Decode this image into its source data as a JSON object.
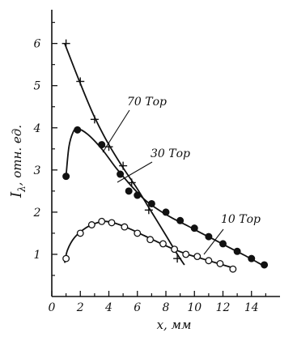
{
  "chart_data": {
    "type": "line",
    "title": "",
    "xlabel": "x, мм",
    "ylabel_main": "I",
    "ylabel_sub": "λ",
    "ylabel_rest": ", отн. ед.",
    "xlim": [
      0,
      16
    ],
    "ylim": [
      0,
      6.8
    ],
    "x_ticks": [
      0,
      2,
      4,
      6,
      8,
      10,
      12,
      14
    ],
    "y_ticks": [
      1,
      2,
      3,
      4,
      5,
      6
    ],
    "x_tick_labels": [
      "0",
      "2",
      "4",
      "6",
      "8",
      "10",
      "12",
      "14"
    ],
    "y_tick_labels": [
      "1",
      "2",
      "3",
      "4",
      "5",
      "6"
    ],
    "grid": false,
    "legend": "none",
    "series": [
      {
        "name": "70 Тор",
        "marker": "plus",
        "points": [
          [
            1.0,
            6.0
          ],
          [
            2.0,
            5.1
          ],
          [
            3.0,
            4.2
          ],
          [
            4.0,
            3.55
          ],
          [
            5.0,
            3.1
          ],
          [
            5.6,
            2.7
          ],
          [
            6.8,
            2.05
          ],
          [
            8.8,
            0.9
          ]
        ],
        "curve": [
          [
            0.9,
            6.0
          ],
          [
            2.0,
            5.05
          ],
          [
            3.0,
            4.25
          ],
          [
            4.0,
            3.6
          ],
          [
            5.0,
            3.05
          ],
          [
            6.0,
            2.55
          ],
          [
            7.0,
            2.0
          ],
          [
            8.0,
            1.45
          ],
          [
            8.8,
            1.0
          ],
          [
            9.3,
            0.75
          ]
        ]
      },
      {
        "name": "30 Тор",
        "marker": "filled",
        "points": [
          [
            1.0,
            2.85
          ],
          [
            1.8,
            3.95
          ],
          [
            3.5,
            3.6
          ],
          [
            4.8,
            2.9
          ],
          [
            5.4,
            2.5
          ],
          [
            6.0,
            2.4
          ],
          [
            7.0,
            2.2
          ],
          [
            8.0,
            2.0
          ],
          [
            9.0,
            1.8
          ],
          [
            10.0,
            1.62
          ],
          [
            11.0,
            1.42
          ],
          [
            12.0,
            1.25
          ],
          [
            13.0,
            1.07
          ],
          [
            14.0,
            0.9
          ],
          [
            14.9,
            0.75
          ]
        ],
        "curve": [
          [
            1.0,
            2.85
          ],
          [
            1.2,
            3.55
          ],
          [
            1.5,
            3.9
          ],
          [
            1.8,
            3.98
          ],
          [
            2.5,
            3.85
          ],
          [
            3.5,
            3.5
          ],
          [
            4.5,
            3.05
          ],
          [
            5.5,
            2.65
          ],
          [
            6.5,
            2.3
          ],
          [
            7.5,
            2.05
          ],
          [
            8.5,
            1.85
          ],
          [
            9.5,
            1.68
          ],
          [
            10.5,
            1.5
          ],
          [
            11.5,
            1.33
          ],
          [
            12.5,
            1.15
          ],
          [
            13.5,
            0.98
          ],
          [
            14.9,
            0.72
          ]
        ]
      },
      {
        "name": "10 Тор",
        "marker": "open",
        "points": [
          [
            1.0,
            0.9
          ],
          [
            2.0,
            1.5
          ],
          [
            2.8,
            1.7
          ],
          [
            3.5,
            1.78
          ],
          [
            4.2,
            1.75
          ],
          [
            5.1,
            1.65
          ],
          [
            6.0,
            1.5
          ],
          [
            6.9,
            1.35
          ],
          [
            7.8,
            1.25
          ],
          [
            8.6,
            1.12
          ],
          [
            9.4,
            1.0
          ],
          [
            10.2,
            0.95
          ],
          [
            11.0,
            0.85
          ],
          [
            11.8,
            0.78
          ],
          [
            12.7,
            0.65
          ]
        ],
        "curve": [
          [
            0.9,
            0.8
          ],
          [
            1.1,
            1.1
          ],
          [
            1.6,
            1.4
          ],
          [
            2.4,
            1.63
          ],
          [
            3.2,
            1.75
          ],
          [
            3.8,
            1.78
          ],
          [
            4.5,
            1.73
          ],
          [
            5.5,
            1.6
          ],
          [
            6.5,
            1.44
          ],
          [
            7.5,
            1.28
          ],
          [
            8.5,
            1.13
          ],
          [
            9.5,
            1.0
          ],
          [
            10.5,
            0.9
          ],
          [
            11.5,
            0.8
          ],
          [
            12.7,
            0.68
          ]
        ]
      }
    ],
    "annotations": [
      {
        "text": "70 Тор",
        "series": 0
      },
      {
        "text": "30 Тор",
        "series": 1
      },
      {
        "text": "10 Тор",
        "series": 2
      }
    ]
  }
}
